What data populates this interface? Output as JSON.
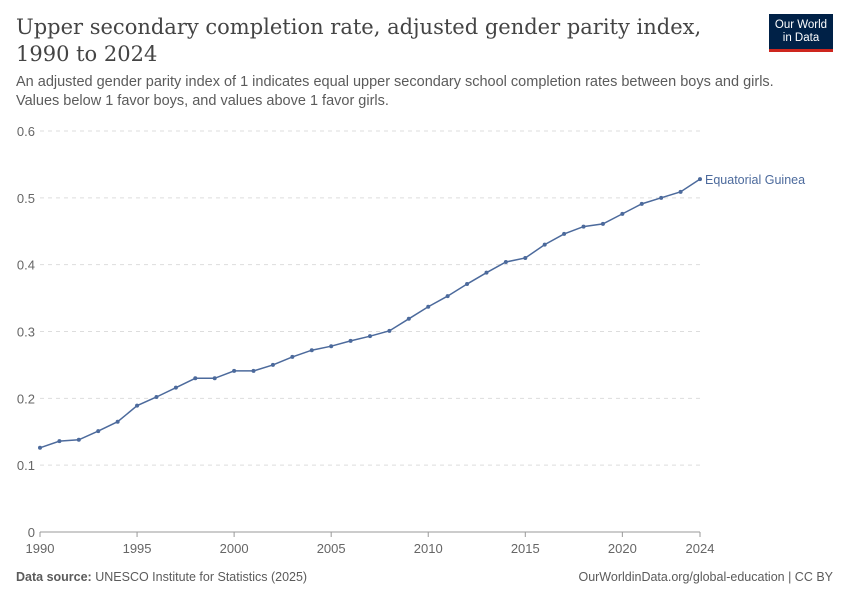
{
  "header": {
    "title": "Upper secondary completion rate, adjusted gender parity index, 1990 to 2024",
    "subtitle": "An adjusted gender parity index of 1 indicates equal upper secondary school completion rates between boys and girls. Values below 1 favor boys, and values above 1 favor girls.",
    "logo": "Our World in Data"
  },
  "footer": {
    "source_label": "Data source:",
    "source": "UNESCO Institute for Statistics (2025)",
    "link": "OurWorldinData.org/global-education | CC BY"
  },
  "chart_data": {
    "type": "line",
    "title": "Upper secondary completion rate, adjusted gender parity index, 1990 to 2024",
    "xlim": [
      1990,
      2024
    ],
    "ylim": [
      0,
      0.6
    ],
    "x_ticks": [
      1990,
      1995,
      2000,
      2005,
      2010,
      2015,
      2020,
      2024
    ],
    "y_ticks": [
      0,
      0.1,
      0.2,
      0.3,
      0.4,
      0.5,
      0.6
    ],
    "grid": "horizontal dashed",
    "legend": "inline label at line end",
    "series": [
      {
        "name": "Equatorial Guinea",
        "color": "#4c6a9c",
        "x": [
          1990,
          1991,
          1992,
          1993,
          1994,
          1995,
          1996,
          1997,
          1998,
          1999,
          2000,
          2001,
          2002,
          2003,
          2004,
          2005,
          2006,
          2007,
          2008,
          2009,
          2010,
          2011,
          2012,
          2013,
          2014,
          2015,
          2016,
          2017,
          2018,
          2019,
          2020,
          2021,
          2022,
          2023,
          2024
        ],
        "values": [
          0.126,
          0.136,
          0.138,
          0.151,
          0.165,
          0.189,
          0.202,
          0.216,
          0.23,
          0.23,
          0.241,
          0.241,
          0.25,
          0.262,
          0.272,
          0.278,
          0.286,
          0.293,
          0.301,
          0.319,
          0.337,
          0.353,
          0.371,
          0.388,
          0.404,
          0.41,
          0.43,
          0.446,
          0.457,
          0.461,
          0.476,
          0.491,
          0.5,
          0.509,
          0.528
        ]
      }
    ]
  }
}
